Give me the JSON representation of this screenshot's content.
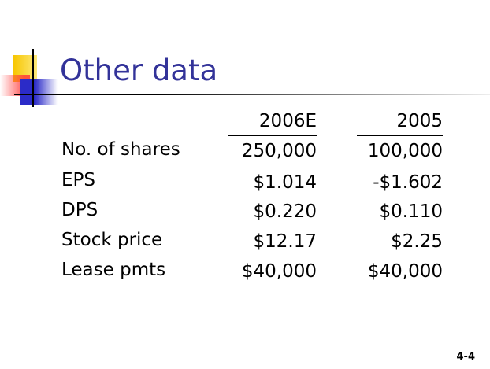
{
  "slide": {
    "title": "Other data",
    "columns": [
      "2006E",
      "2005"
    ],
    "rows": [
      {
        "label": "No. of shares",
        "v2006": "250,000",
        "v2005": "100,000"
      },
      {
        "label": "EPS",
        "v2006": "$1.014",
        "v2005": "-$1.602"
      },
      {
        "label": "DPS",
        "v2006": "$0.220",
        "v2005": "$0.110"
      },
      {
        "label": "Stock price",
        "v2006": "$12.17",
        "v2005": "$2.25"
      },
      {
        "label": "Lease pmts",
        "v2006": "$40,000",
        "v2005": "$40,000"
      }
    ],
    "page_number": "4-4",
    "colors": {
      "title": "#333399",
      "accent_yellow": "#f7c600",
      "accent_red": "#ff3a3a",
      "accent_blue": "#2b2bc8"
    }
  }
}
